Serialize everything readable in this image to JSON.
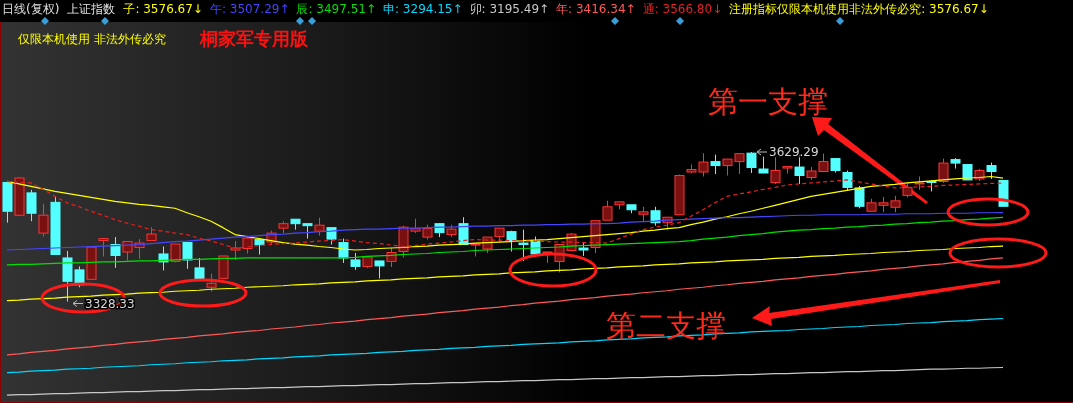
{
  "chart_data": {
    "type": "candlestick",
    "title": "日线(复权)",
    "subtitle": "上证指数",
    "categories": [
      null,
      null,
      null,
      null,
      null,
      null,
      null,
      null,
      null,
      null,
      null,
      null,
      null,
      null,
      null,
      null,
      null,
      null,
      null,
      null,
      null,
      null,
      null,
      null,
      null,
      null,
      null,
      null,
      null,
      null,
      null,
      null,
      null,
      null,
      null,
      null,
      null,
      null,
      null,
      null,
      null,
      null,
      null,
      null,
      null,
      null,
      null,
      null,
      null,
      null,
      null,
      null,
      null,
      null,
      null,
      null,
      null,
      null,
      null,
      null,
      null,
      null,
      null,
      null,
      null,
      null,
      null,
      null,
      null,
      null,
      null,
      null,
      null,
      null,
      null,
      null,
      null,
      null,
      null,
      null,
      null,
      null,
      null,
      null
    ],
    "ylim": [
      3124,
      3891
    ],
    "tick_labels": false,
    "ohlc": [
      [
        3568,
        3568,
        3487,
        3510
      ],
      [
        3502,
        3579,
        3500,
        3577
      ],
      [
        3547,
        3553,
        3490,
        3506
      ],
      [
        3466,
        3525,
        3459,
        3502
      ],
      [
        3528,
        3540,
        3423,
        3423
      ],
      [
        3416,
        3430,
        3328.33,
        3369
      ],
      [
        3392,
        3399,
        3357,
        3362
      ],
      [
        3373,
        3438,
        3373,
        3438
      ],
      [
        3451,
        3455,
        3419,
        3455
      ],
      [
        3443,
        3458,
        3396,
        3421
      ],
      [
        3428,
        3449,
        3411,
        3449
      ],
      [
        3437,
        3454,
        3414,
        3446
      ],
      [
        3451,
        3478,
        3451,
        3464
      ],
      [
        3424,
        3439,
        3391,
        3408
      ],
      [
        3409,
        3444,
        3407,
        3444
      ],
      [
        3447,
        3447,
        3394,
        3412
      ],
      [
        3396,
        3416,
        3371,
        3372
      ],
      [
        3357,
        3384,
        3348,
        3365
      ],
      [
        3375,
        3420,
        3375,
        3420
      ],
      [
        3432,
        3450,
        3412,
        3436
      ],
      [
        3435,
        3461,
        3425,
        3456
      ],
      [
        3453,
        3456,
        3423,
        3443
      ],
      [
        3448,
        3471,
        3443,
        3466
      ],
      [
        3476,
        3490,
        3466,
        3485
      ],
      [
        3494,
        3494,
        3473,
        3485
      ],
      [
        3485,
        3485,
        3455,
        3481
      ],
      [
        3470,
        3497,
        3461,
        3482
      ],
      [
        3477,
        3477,
        3443,
        3454
      ],
      [
        3447,
        3455,
        3406,
        3416
      ],
      [
        3412,
        3426,
        3392,
        3399
      ],
      [
        3399,
        3420,
        3396,
        3418
      ],
      [
        3410,
        3410,
        3375,
        3400
      ],
      [
        3409,
        3436,
        3398,
        3427
      ],
      [
        3429,
        3481,
        3417,
        3478
      ],
      [
        3470,
        3495,
        3466,
        3475
      ],
      [
        3458,
        3483,
        3453,
        3475
      ],
      [
        3485,
        3486,
        3458,
        3467
      ],
      [
        3463,
        3483,
        3458,
        3474
      ],
      [
        3485,
        3498,
        3443,
        3443
      ],
      [
        3443,
        3444,
        3419,
        3444
      ],
      [
        3434,
        3458,
        3426,
        3458
      ],
      [
        3459,
        3476,
        3449,
        3476
      ],
      [
        3469,
        3471,
        3429,
        3451
      ],
      [
        3446,
        3473,
        3410,
        3443
      ],
      [
        3449,
        3459,
        3424,
        3424
      ],
      [
        3426,
        3428,
        3406,
        3428
      ],
      [
        3409,
        3443,
        3387,
        3443
      ],
      [
        3431,
        3466,
        3431,
        3464
      ],
      [
        3436,
        3446,
        3420,
        3432
      ],
      [
        3437,
        3491,
        3426,
        3491
      ],
      [
        3492,
        3531,
        3492,
        3519
      ],
      [
        3523,
        3529,
        3514,
        3529
      ],
      [
        3523,
        3523,
        3506,
        3513
      ],
      [
        3504,
        3519,
        3490,
        3509
      ],
      [
        3511,
        3519,
        3481,
        3487
      ],
      [
        3487,
        3498,
        3473,
        3498
      ],
      [
        3503,
        3584,
        3503,
        3582
      ],
      [
        3589,
        3604,
        3587,
        3594
      ],
      [
        3589,
        3627,
        3580,
        3609
      ],
      [
        3610,
        3624,
        3585,
        3602
      ],
      [
        3602,
        3615,
        3582,
        3615
      ],
      [
        3610,
        3626,
        3585,
        3626
      ],
      [
        3627,
        3629.29,
        3587,
        3598
      ],
      [
        3595,
        3620,
        3587,
        3587
      ],
      [
        3568,
        3619,
        3565,
        3592
      ],
      [
        3597,
        3600,
        3586,
        3600
      ],
      [
        3599,
        3626,
        3565,
        3582
      ],
      [
        3578,
        3599,
        3573,
        3591
      ],
      [
        3590,
        3626,
        3590,
        3610
      ],
      [
        3616,
        3616,
        3588,
        3592
      ],
      [
        3588,
        3592,
        3551,
        3558
      ],
      [
        3557,
        3561,
        3516,
        3520
      ],
      [
        3510,
        3535,
        3510,
        3527
      ],
      [
        3522,
        3539,
        3508,
        3527
      ],
      [
        3518,
        3541,
        3508,
        3531
      ],
      [
        3542,
        3567,
        3538,
        3558
      ],
      [
        3565,
        3580,
        3553,
        3567
      ],
      [
        3570,
        3572,
        3550,
        3568
      ],
      [
        3570,
        3616,
        3567,
        3607
      ],
      [
        3614,
        3617,
        3596,
        3607
      ],
      [
        3604,
        3604,
        3573,
        3573
      ],
      [
        3575,
        3595,
        3571,
        3592
      ],
      [
        3602,
        3608,
        3575,
        3590
      ],
      [
        3572,
        3572,
        3519,
        3520
      ]
    ],
    "series": [
      {
        "type": "line",
        "name": "子: 3576.67↓",
        "color": "#ffff00",
        "values": [
          3570,
          3565,
          3560,
          3555,
          3550,
          3546,
          3542,
          3538,
          3534,
          3530,
          3527,
          3524,
          3522,
          3519,
          3516,
          3507,
          3499,
          3490,
          3477,
          3463,
          3459,
          3455,
          3451,
          3447,
          3444,
          3442,
          3439,
          3437,
          3434,
          3432,
          3433,
          3435,
          3436,
          3437,
          3439,
          3440,
          3442,
          3443,
          3444,
          3446,
          3447,
          3448,
          3449,
          3451,
          3452,
          3453,
          3455,
          3457,
          3459,
          3461,
          3463,
          3465,
          3467,
          3470,
          3472,
          3475,
          3477,
          3483,
          3488,
          3494,
          3499,
          3505,
          3510,
          3516,
          3522,
          3528,
          3534,
          3540,
          3544,
          3548,
          3552,
          3556,
          3560,
          3562,
          3564,
          3567,
          3569,
          3571,
          3573,
          3575,
          3577,
          3578,
          3580,
          3576.67
        ]
      },
      {
        "type": "line",
        "name": "午: 3507.29↑",
        "color": "#4646ff",
        "values": [
          3432,
          3433,
          3434,
          3435,
          3436,
          3437,
          3438,
          3439,
          3440,
          3441,
          3442,
          3443,
          3445,
          3447,
          3449,
          3450,
          3452,
          3454,
          3456,
          3458,
          3459,
          3461,
          3463,
          3464,
          3466,
          3467,
          3469,
          3470,
          3472,
          3473,
          3474,
          3474,
          3475,
          3476,
          3476,
          3477,
          3478,
          3478,
          3479,
          3480,
          3480,
          3481,
          3481,
          3482,
          3482,
          3483,
          3483,
          3484,
          3484,
          3485,
          3485,
          3486,
          3488,
          3489,
          3490,
          3492,
          3493,
          3494,
          3495,
          3496,
          3497,
          3497,
          3498,
          3499,
          3500,
          3501,
          3502,
          3502,
          3503,
          3503,
          3503,
          3503,
          3504,
          3504,
          3504,
          3505,
          3505,
          3505,
          3506,
          3506,
          3506,
          3507,
          3507,
          3507.29
        ]
      },
      {
        "type": "line",
        "name": "辰: 3497.51↑",
        "color": "#00e000",
        "values": [
          3402,
          3403,
          3403,
          3404,
          3405,
          3406,
          3406,
          3407,
          3408,
          3408,
          3409,
          3410,
          3410,
          3411,
          3412,
          3413,
          3413,
          3414,
          3415,
          3415,
          3416,
          3416,
          3416,
          3416,
          3416,
          3416,
          3416,
          3416,
          3416,
          3417,
          3419,
          3420,
          3421,
          3423,
          3424,
          3425,
          3427,
          3428,
          3429,
          3431,
          3432,
          3433,
          3434,
          3435,
          3436,
          3437,
          3438,
          3440,
          3441,
          3442,
          3443,
          3444,
          3445,
          3446,
          3447,
          3448,
          3449,
          3451,
          3454,
          3456,
          3458,
          3461,
          3463,
          3465,
          3468,
          3470,
          3472,
          3473,
          3475,
          3476,
          3478,
          3479,
          3481,
          3482,
          3484,
          3485,
          3487,
          3488,
          3490,
          3491,
          3493,
          3494,
          3496,
          3497.51
        ]
      },
      {
        "type": "line",
        "name": "申: 3294.15↑",
        "color": "#00d8ff",
        "values": [
          3185,
          3186,
          3188,
          3189,
          3190,
          3192,
          3193,
          3194,
          3196,
          3197,
          3198,
          3199,
          3201,
          3202,
          3203,
          3205,
          3206,
          3207,
          3209,
          3210,
          3211,
          3213,
          3214,
          3215,
          3217,
          3218,
          3219,
          3221,
          3222,
          3223,
          3224,
          3226,
          3227,
          3228,
          3230,
          3231,
          3232,
          3234,
          3235,
          3236,
          3238,
          3239,
          3240,
          3242,
          3243,
          3244,
          3245,
          3247,
          3248,
          3249,
          3251,
          3252,
          3253,
          3255,
          3256,
          3257,
          3259,
          3260,
          3261,
          3263,
          3264,
          3265,
          3267,
          3268,
          3269,
          3270,
          3272,
          3273,
          3274,
          3276,
          3277,
          3278,
          3280,
          3281,
          3282,
          3284,
          3285,
          3286,
          3288,
          3289,
          3290,
          3292,
          3293,
          3294.15
        ]
      },
      {
        "type": "line",
        "name": "卯: 3195.49↑",
        "color": "#c8c8c8",
        "values": [
          3140,
          3141,
          3141,
          3142,
          3143,
          3143,
          3144,
          3145,
          3145,
          3146,
          3147,
          3147,
          3148,
          3149,
          3149,
          3150,
          3151,
          3151,
          3152,
          3153,
          3153,
          3154,
          3155,
          3155,
          3156,
          3157,
          3157,
          3158,
          3159,
          3159,
          3160,
          3161,
          3161,
          3162,
          3163,
          3163,
          3164,
          3165,
          3165,
          3166,
          3167,
          3167,
          3168,
          3169,
          3169,
          3170,
          3171,
          3171,
          3172,
          3173,
          3173,
          3174,
          3175,
          3175,
          3176,
          3177,
          3177,
          3178,
          3179,
          3179,
          3180,
          3181,
          3181,
          3182,
          3183,
          3183,
          3184,
          3185,
          3185,
          3186,
          3187,
          3187,
          3188,
          3189,
          3189,
          3190,
          3191,
          3192,
          3192,
          3193,
          3194,
          3194,
          3195,
          3195.49
        ]
      },
      {
        "type": "line",
        "name": "年: 3416.34↑",
        "color": "#ff5a5a",
        "values": [
          3221,
          3223,
          3226,
          3228,
          3230,
          3233,
          3235,
          3237,
          3240,
          3242,
          3245,
          3247,
          3249,
          3252,
          3254,
          3256,
          3259,
          3261,
          3263,
          3266,
          3268,
          3270,
          3273,
          3275,
          3277,
          3280,
          3282,
          3285,
          3287,
          3289,
          3292,
          3294,
          3296,
          3299,
          3301,
          3303,
          3306,
          3308,
          3310,
          3313,
          3315,
          3317,
          3320,
          3322,
          3325,
          3327,
          3329,
          3332,
          3334,
          3336,
          3339,
          3341,
          3343,
          3346,
          3348,
          3350,
          3353,
          3355,
          3357,
          3360,
          3362,
          3365,
          3367,
          3369,
          3372,
          3374,
          3376,
          3379,
          3381,
          3383,
          3386,
          3388,
          3390,
          3393,
          3395,
          3397,
          3400,
          3402,
          3404,
          3407,
          3409,
          3411,
          3414,
          3416.34
        ]
      },
      {
        "type": "line",
        "name": "通: 3566.80↓",
        "color": "#e82020",
        "line_style": "dashed",
        "values": [
          3570,
          3568,
          3567,
          3554,
          3540,
          3527,
          3519,
          3510,
          3502,
          3493,
          3486,
          3480,
          3473,
          3470,
          3466,
          3463,
          3456,
          3450,
          3443,
          3436,
          3438,
          3441,
          3443,
          3445,
          3446,
          3448,
          3450,
          3451,
          3453,
          3450,
          3447,
          3445,
          3442,
          3439,
          3441,
          3444,
          3446,
          3448,
          3451,
          3453,
          3452,
          3452,
          3451,
          3450,
          3450,
          3449,
          3448,
          3448,
          3447,
          3447,
          3446,
          3455,
          3464,
          3473,
          3478,
          3482,
          3487,
          3500,
          3513,
          3527,
          3540,
          3545,
          3549,
          3554,
          3558,
          3563,
          3565,
          3567,
          3569,
          3571,
          3573,
          3569,
          3565,
          3561,
          3557,
          3558,
          3559,
          3560,
          3562,
          3563,
          3564,
          3565,
          3566,
          3566.8
        ]
      },
      {
        "type": "line",
        "color": "#ffff00",
        "values": [
          3330,
          3331,
          3333,
          3334,
          3335,
          3337,
          3338,
          3339,
          3341,
          3342,
          3343,
          3345,
          3346,
          3347,
          3349,
          3350,
          3351,
          3353,
          3354,
          3355,
          3357,
          3358,
          3359,
          3360,
          3362,
          3363,
          3364,
          3366,
          3367,
          3368,
          3370,
          3371,
          3372,
          3374,
          3375,
          3376,
          3378,
          3379,
          3380,
          3382,
          3383,
          3384,
          3386,
          3387,
          3388,
          3390,
          3391,
          3392,
          3394,
          3395,
          3396,
          3398,
          3399,
          3400,
          3402,
          3403,
          3404,
          3406,
          3407,
          3408,
          3410,
          3411,
          3412,
          3413,
          3415,
          3416,
          3417,
          3419,
          3420,
          3421,
          3423,
          3424,
          3425,
          3427,
          3428,
          3429,
          3431,
          3432,
          3433,
          3435,
          3436,
          3437,
          3439,
          3440
        ]
      }
    ],
    "annotations": [
      "注册指标仅限本机使用非法外传必究: 3576.67↓",
      "仅限本机使用 非法外传必究",
      "桐家军专用版",
      "第一支撑",
      "第二支撑",
      "3629.29",
      "3328.33"
    ]
  }
}
